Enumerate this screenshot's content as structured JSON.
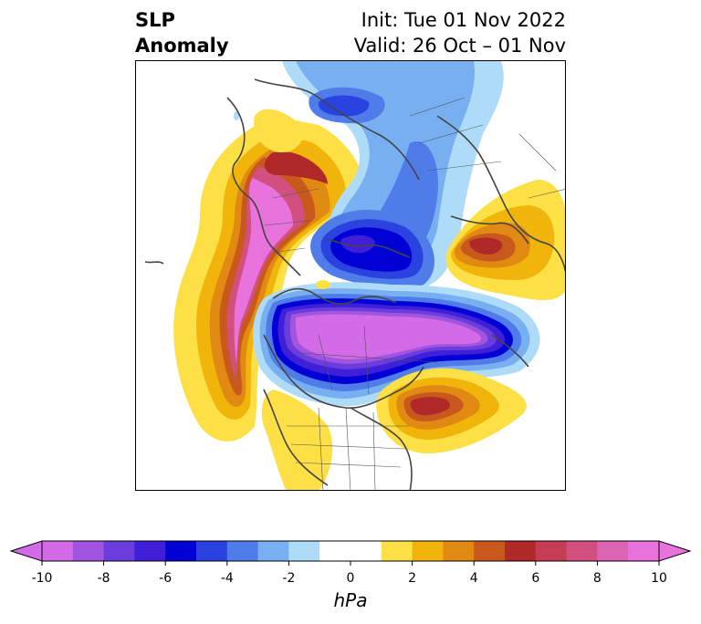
{
  "title": {
    "left_line1": "SLP",
    "left_line2": "Anomaly",
    "right_line1": "Init: Tue 01 Nov 2022",
    "right_line2": "Valid: 26 Oct – 01 Nov"
  },
  "colorbar": {
    "units": "hPa",
    "ticks": [
      "-10",
      "-8",
      "-6",
      "-4",
      "-2",
      "0",
      "2",
      "4",
      "6",
      "8",
      "10"
    ],
    "bins": [
      {
        "from": -10,
        "to": -9,
        "color": "#d36be8"
      },
      {
        "from": -9,
        "to": -8,
        "color": "#a054e0"
      },
      {
        "from": -8,
        "to": -7,
        "color": "#6a3ddc"
      },
      {
        "from": -7,
        "to": -6,
        "color": "#3f1fd8"
      },
      {
        "from": -6,
        "to": -5,
        "color": "#0000d6"
      },
      {
        "from": -5,
        "to": -4,
        "color": "#2a42e0"
      },
      {
        "from": -4,
        "to": -3,
        "color": "#4f7ce8"
      },
      {
        "from": -3,
        "to": -2,
        "color": "#78aff0"
      },
      {
        "from": -2,
        "to": -1,
        "color": "#aedcf8"
      },
      {
        "from": -1,
        "to": 1,
        "color": "#ffffff"
      },
      {
        "from": 1,
        "to": 2,
        "color": "#fde046"
      },
      {
        "from": 2,
        "to": 3,
        "color": "#f0b40a"
      },
      {
        "from": 3,
        "to": 4,
        "color": "#e08a14"
      },
      {
        "from": 4,
        "to": 5,
        "color": "#c8581c"
      },
      {
        "from": 5,
        "to": 6,
        "color": "#b02828"
      },
      {
        "from": 6,
        "to": 7,
        "color": "#c43d55"
      },
      {
        "from": 7,
        "to": 8,
        "color": "#d2507f"
      },
      {
        "from": 8,
        "to": 9,
        "color": "#dc64b4"
      },
      {
        "from": 9,
        "to": 10,
        "color": "#e873dc"
      }
    ],
    "extend_min_color": "#d36be8",
    "extend_max_color": "#e873dc"
  },
  "map": {
    "projection": "north-polar-stereographic",
    "variable": "sea level pressure anomaly",
    "features": [
      {
        "name": "north-pacific-positive-anomaly",
        "sign": "positive",
        "peak_hPa": 10
      },
      {
        "name": "siberia-positive-anomaly",
        "sign": "positive",
        "peak_hPa": 6
      },
      {
        "name": "arctic-canada-negative-anomaly",
        "sign": "negative",
        "peak_hPa": -10
      },
      {
        "name": "barents-negative-anomaly",
        "sign": "negative",
        "peak_hPa": -6
      },
      {
        "name": "scandinavia-positive-anomaly",
        "sign": "positive",
        "peak_hPa": 6
      },
      {
        "name": "atlantic-positive-anomaly",
        "sign": "positive",
        "peak_hPa": 6
      }
    ]
  }
}
